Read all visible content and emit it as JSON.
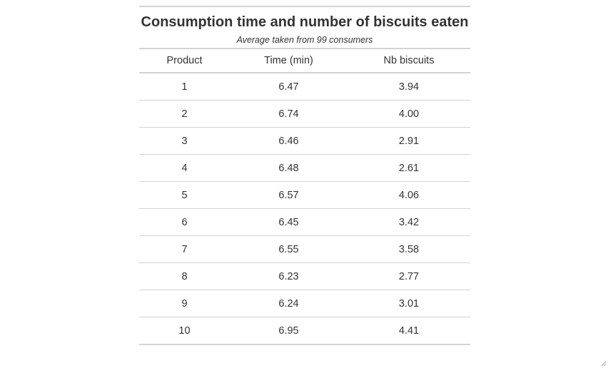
{
  "chart_data": {
    "type": "table",
    "title": "Consumption time and number of biscuits eaten",
    "subtitle": "Average taken from 99 consumers",
    "columns": [
      "Product",
      "Time (min)",
      "Nb biscuits"
    ],
    "rows": [
      [
        "1",
        "6.47",
        "3.94"
      ],
      [
        "2",
        "6.74",
        "4.00"
      ],
      [
        "3",
        "6.46",
        "2.91"
      ],
      [
        "4",
        "6.48",
        "2.61"
      ],
      [
        "5",
        "6.57",
        "4.06"
      ],
      [
        "6",
        "6.45",
        "3.42"
      ],
      [
        "7",
        "6.55",
        "3.58"
      ],
      [
        "8",
        "6.23",
        "2.77"
      ],
      [
        "9",
        "6.24",
        "3.01"
      ],
      [
        "10",
        "6.95",
        "4.41"
      ]
    ]
  },
  "colors": {
    "text": "#333333",
    "rule": "#d3d3d3",
    "background": "#ffffff"
  },
  "icons": {
    "resize_grip": "resize-grip-icon"
  }
}
